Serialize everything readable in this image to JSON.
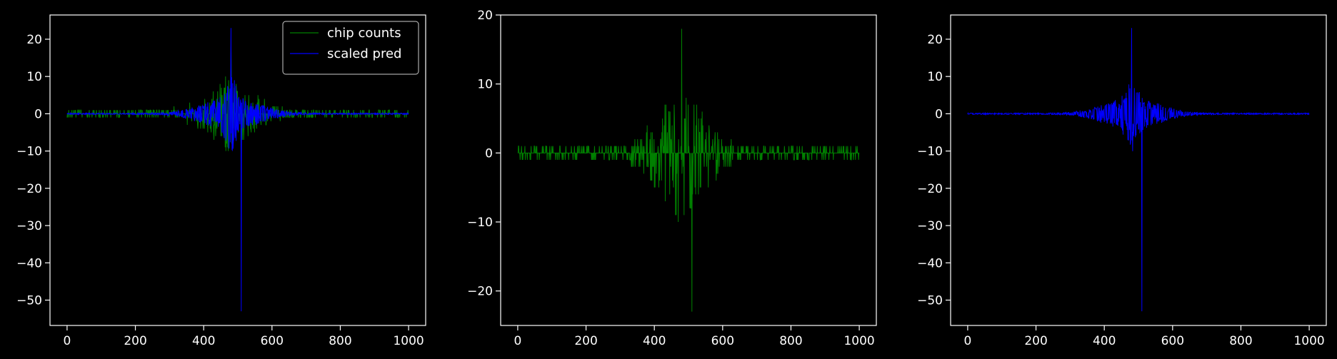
{
  "figure": {
    "background": "#000000",
    "foreground": "#ffffff"
  },
  "chart_data": [
    {
      "type": "line",
      "title": "",
      "xlabel": "",
      "ylabel": "",
      "xlim": [
        -50,
        1050
      ],
      "ylim": [
        -56.8,
        26.5
      ],
      "xticks": [
        0,
        200,
        400,
        600,
        800,
        1000
      ],
      "yticks": [
        20,
        10,
        0,
        -10,
        -20,
        -30,
        -40,
        -50
      ],
      "grid": false,
      "legend": {
        "placement": "top-right",
        "entries": [
          "chip counts",
          "scaled pred"
        ]
      },
      "series": [
        {
          "name": "chip counts",
          "color": "#008000",
          "kind": "counts",
          "x_range": [
            0,
            1000
          ],
          "peak_x": 480,
          "max": 18,
          "min": -23
        },
        {
          "name": "scaled pred",
          "color": "#0000ff",
          "kind": "prediction",
          "x_range": [
            0,
            1000
          ],
          "peak_x": 480,
          "max": 23,
          "min": -53
        }
      ]
    },
    {
      "type": "line",
      "title": "",
      "xlabel": "",
      "ylabel": "",
      "xlim": [
        -50,
        1050
      ],
      "ylim": [
        -25,
        20
      ],
      "xticks": [
        0,
        200,
        400,
        600,
        800,
        1000
      ],
      "yticks": [
        20,
        10,
        0,
        -10,
        -20
      ],
      "grid": false,
      "series": [
        {
          "color": "#008000",
          "kind": "counts",
          "x_range": [
            0,
            1000
          ],
          "peak_x": 480,
          "max": 18,
          "min": -23
        }
      ]
    },
    {
      "type": "line",
      "title": "",
      "xlabel": "",
      "ylabel": "",
      "xlim": [
        -50,
        1050
      ],
      "ylim": [
        -56.8,
        26.5
      ],
      "xticks": [
        0,
        200,
        400,
        600,
        800,
        1000
      ],
      "yticks": [
        20,
        10,
        0,
        -10,
        -20,
        -30,
        -40,
        -50
      ],
      "grid": false,
      "series": [
        {
          "color": "#0000ff",
          "kind": "prediction",
          "x_range": [
            0,
            1000
          ],
          "peak_x": 480,
          "max": 23,
          "min": -53
        }
      ]
    }
  ]
}
